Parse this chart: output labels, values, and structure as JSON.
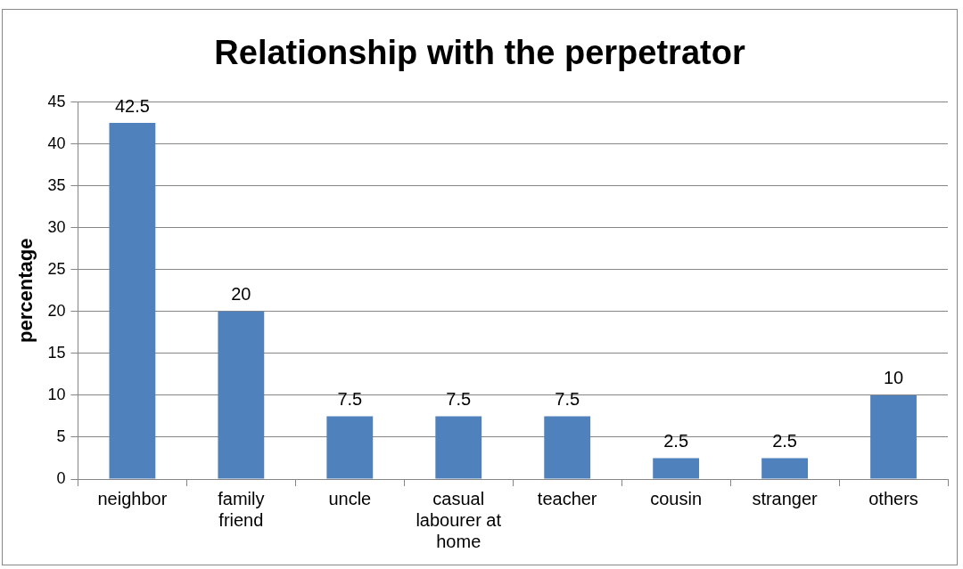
{
  "chart_data": {
    "type": "bar",
    "title": "Relationship with the perpetrator",
    "ylabel": "percentage",
    "categories": [
      "neighbor",
      "family friend",
      "uncle",
      "casual labourer at home",
      "teacher",
      "cousin",
      "stranger",
      "others"
    ],
    "values": [
      42.5,
      20,
      7.5,
      7.5,
      7.5,
      2.5,
      2.5,
      10
    ],
    "color": "#4f81bd",
    "ylim": [
      0,
      45
    ],
    "yticks": [
      0,
      5,
      10,
      15,
      20,
      25,
      30,
      35,
      40,
      45
    ],
    "grid": "y",
    "data_labels": true
  }
}
